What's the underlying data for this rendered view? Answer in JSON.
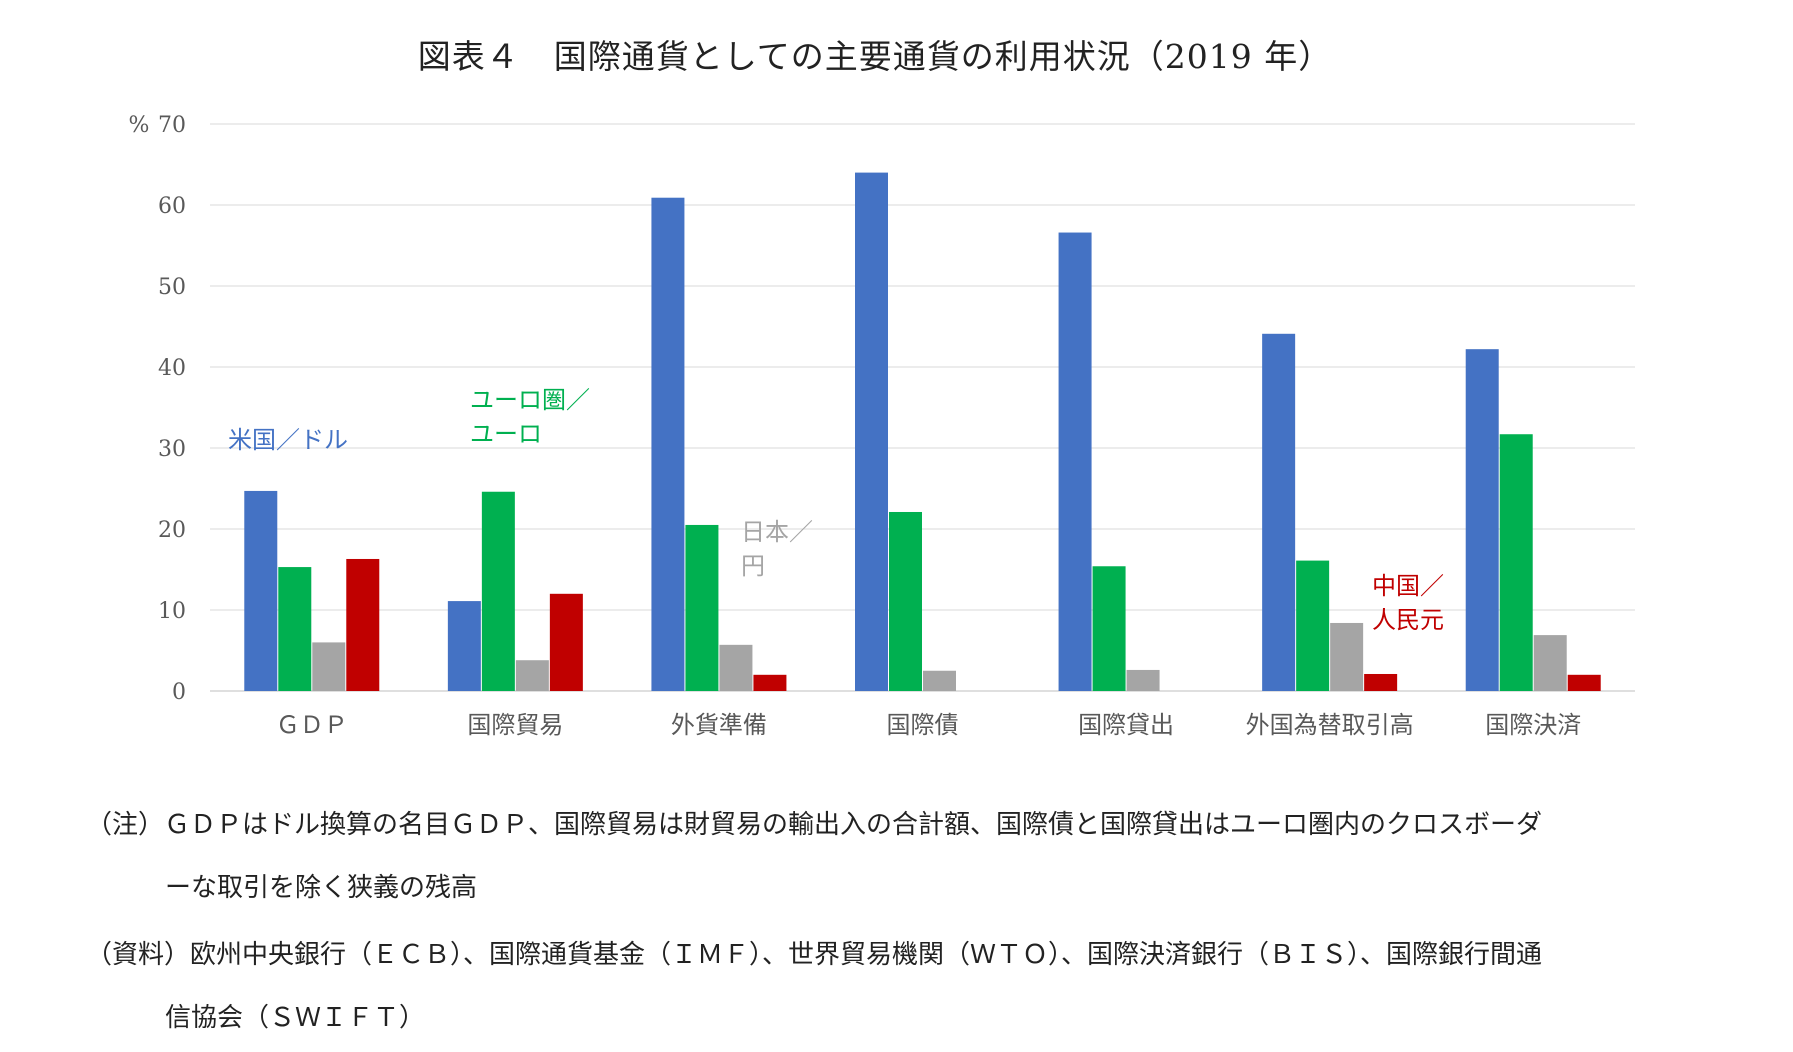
{
  "chart_data": {
    "type": "bar",
    "title": "図表４　国際通貨としての主要通貨の利用状況（2019 年）",
    "ylabel": "%",
    "ylim": [
      0,
      70
    ],
    "yticks": [
      0,
      10,
      20,
      30,
      40,
      50,
      60,
      70
    ],
    "grid": true,
    "categories": [
      "ＧＤＰ",
      "国際貿易",
      "外貨準備",
      "国際債",
      "国際貸出",
      "外国為替取引高",
      "国際決済"
    ],
    "series": [
      {
        "name": "米国／ドル",
        "color": "#4472c4",
        "values": [
          24.7,
          11.1,
          60.9,
          64.0,
          56.6,
          44.1,
          42.2
        ]
      },
      {
        "name": "ユーロ圏／ユーロ",
        "color": "#00b050",
        "values": [
          15.3,
          24.6,
          20.5,
          22.1,
          15.4,
          16.1,
          31.7
        ]
      },
      {
        "name": "日本／円",
        "color": "#a5a5a5",
        "values": [
          6.0,
          3.8,
          5.7,
          2.5,
          2.6,
          8.4,
          6.9
        ]
      },
      {
        "name": "中国／人民元",
        "color": "#c00000",
        "values": [
          16.3,
          12.0,
          2.0,
          null,
          null,
          2.1,
          2.0
        ]
      }
    ],
    "series_labels": [
      {
        "lines": [
          "米国／ドル"
        ],
        "color": "#4472c4"
      },
      {
        "lines": [
          "ユーロ圏／",
          "ユーロ"
        ],
        "color": "#00b050"
      },
      {
        "lines": [
          "日本／",
          "円"
        ],
        "color": "#a5a5a5"
      },
      {
        "lines": [
          "中国／",
          "人民元"
        ],
        "color": "#c00000"
      }
    ]
  },
  "notes": {
    "note1_line1": "（注）ＧＤＰはドル換算の名目ＧＤＰ、国際貿易は財貿易の輸出入の合計額、国際債と国際貸出はユーロ圏内のクロスボーダ",
    "note1_line2": "ーな取引を除く狭義の残高",
    "note2_line1": "（資料）欧州中央銀行（ＥＣＢ）、国際通貨基金（ＩＭＦ）、世界貿易機関（ＷＴＯ）、国際決済銀行（ＢＩＳ）、国際銀行間通",
    "note2_line2": "信協会（ＳＷＩＦＴ）"
  }
}
